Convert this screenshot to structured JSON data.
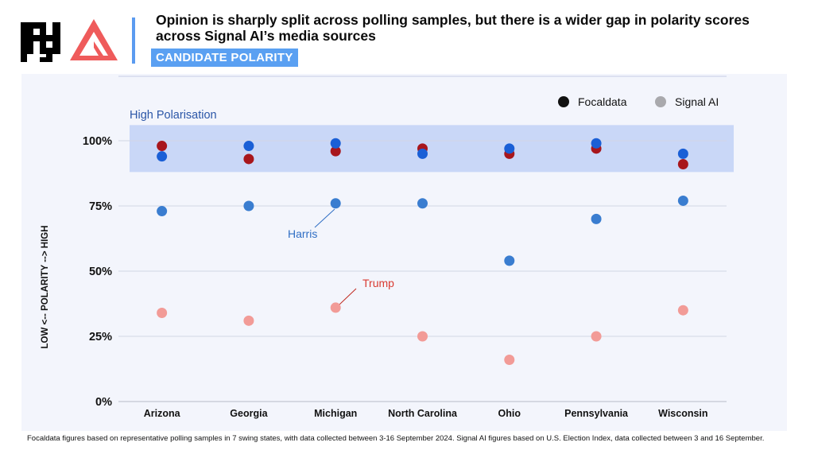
{
  "header": {
    "title": "Opinion is sharply split across polling samples, but there is a wider gap in polarity scores across Signal AI’s media sources",
    "subtitle": "CANDIDATE POLARITY",
    "accent_color": "#5aa0f2",
    "logo_color": "#ef5b5b"
  },
  "footnote": "Focaldata figures based on representative polling samples in 7 swing states, with data collected between 3-16 September 2024. Signal AI figures based on U.S. Election Index, data collected between 3 and 16 September.",
  "chart_data": {
    "type": "scatter",
    "categories": [
      "Arizona",
      "Georgia",
      "Michigan",
      "North Carolina",
      "Ohio",
      "Pennsylvania",
      "Wisconsin"
    ],
    "ylabel": "LOW <-- POLARITY --> HIGH",
    "ylim": [
      0,
      100
    ],
    "yticks": [
      "0%",
      "25%",
      "50%",
      "75%",
      "100%"
    ],
    "ytick_values": [
      0,
      25,
      50,
      75,
      100
    ],
    "grid": true,
    "legend": {
      "position": "top-right",
      "entries": [
        {
          "label": "Focaldata",
          "color": "#111111"
        },
        {
          "label": "Signal AI",
          "color": "#a9a9ad"
        }
      ]
    },
    "band": {
      "label": "High Polarisation",
      "from": 88,
      "to": 106,
      "color": "#c9d7f7"
    },
    "annotations": [
      {
        "text": "Harris",
        "color": "#2f6ec4"
      },
      {
        "text": "Trump",
        "color": "#d93b32"
      }
    ],
    "series": [
      {
        "name": "Harris",
        "source": "Focaldata",
        "color": "#1a5fd6",
        "values": [
          94,
          98,
          99,
          95,
          97,
          99,
          95
        ]
      },
      {
        "name": "Trump",
        "source": "Focaldata",
        "color": "#a8161c",
        "values": [
          98,
          93,
          96,
          97,
          95,
          97,
          91
        ]
      },
      {
        "name": "Harris",
        "source": "Signal AI",
        "color": "#3a7dd0",
        "values": [
          73,
          75,
          76,
          76,
          54,
          70,
          77
        ]
      },
      {
        "name": "Trump",
        "source": "Signal AI",
        "color": "#f29b97",
        "values": [
          34,
          31,
          36,
          25,
          16,
          25,
          35
        ]
      }
    ]
  }
}
